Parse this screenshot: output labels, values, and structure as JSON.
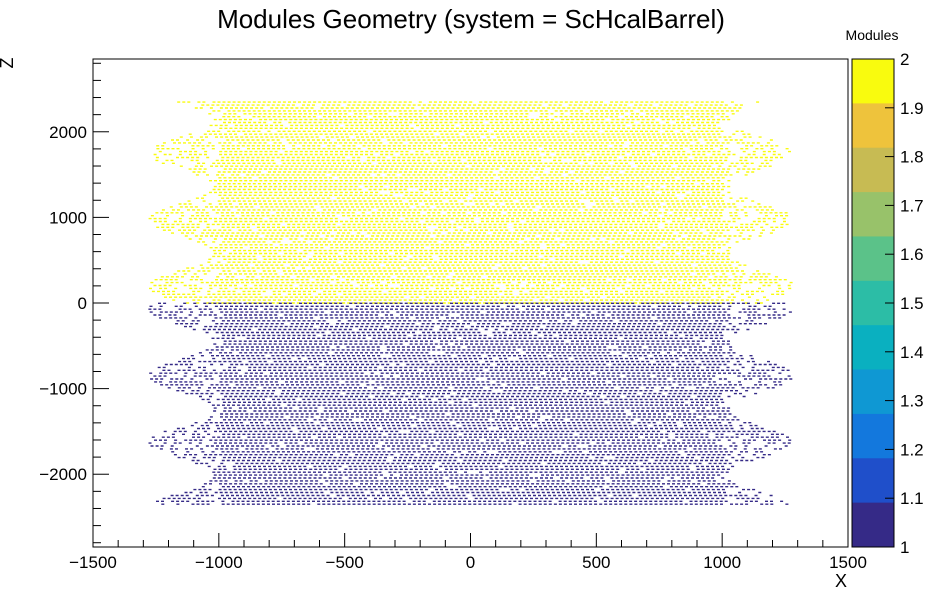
{
  "chart_data": {
    "type": "scatter",
    "title": "Modules Geometry (system = ScHcalBarrel)",
    "xlabel": "X",
    "ylabel": "Z",
    "xlim": [
      -1500,
      1500
    ],
    "ylim": [
      -2850,
      2850
    ],
    "x_ticks": [
      -1500,
      -1000,
      -500,
      0,
      500,
      1000,
      1500
    ],
    "x_tick_labels": [
      "−1500",
      "−1000",
      "−500",
      "0",
      "500",
      "1000",
      "1500"
    ],
    "y_ticks": [
      -2000,
      -1000,
      0,
      1000,
      2000
    ],
    "y_tick_labels": [
      "−2000",
      "−1000",
      "0",
      "1000",
      "2000"
    ],
    "grid": false,
    "colorbar": {
      "title": "Modules",
      "range": [
        1,
        2
      ],
      "ticks": [
        1,
        1.1,
        1.2,
        1.3,
        1.4,
        1.5,
        1.6,
        1.7,
        1.8,
        1.9,
        2
      ],
      "tick_labels": [
        "1",
        "1.1",
        "1.2",
        "1.3",
        "1.4",
        "1.5",
        "1.6",
        "1.7",
        "1.8",
        "1.9",
        "2"
      ],
      "colors": [
        "#352a87",
        "#1f4fca",
        "#1378dd",
        "#0f98d3",
        "#0ab0c0",
        "#2cbda6",
        "#5bc289",
        "#98c26a",
        "#c7bb53",
        "#eec33c",
        "#f9fb0e"
      ]
    },
    "series": [
      {
        "module_value": 2,
        "color": "#f9fb0e",
        "x_range": [
          -1280,
          1280
        ],
        "z_range": [
          0,
          2350
        ],
        "x_step": 20,
        "z_step": 34
      },
      {
        "module_value": 1,
        "color": "#352a87",
        "x_range": [
          -1280,
          1280
        ],
        "z_range": [
          -2350,
          0
        ],
        "x_step": 20,
        "z_step": 34
      }
    ]
  }
}
